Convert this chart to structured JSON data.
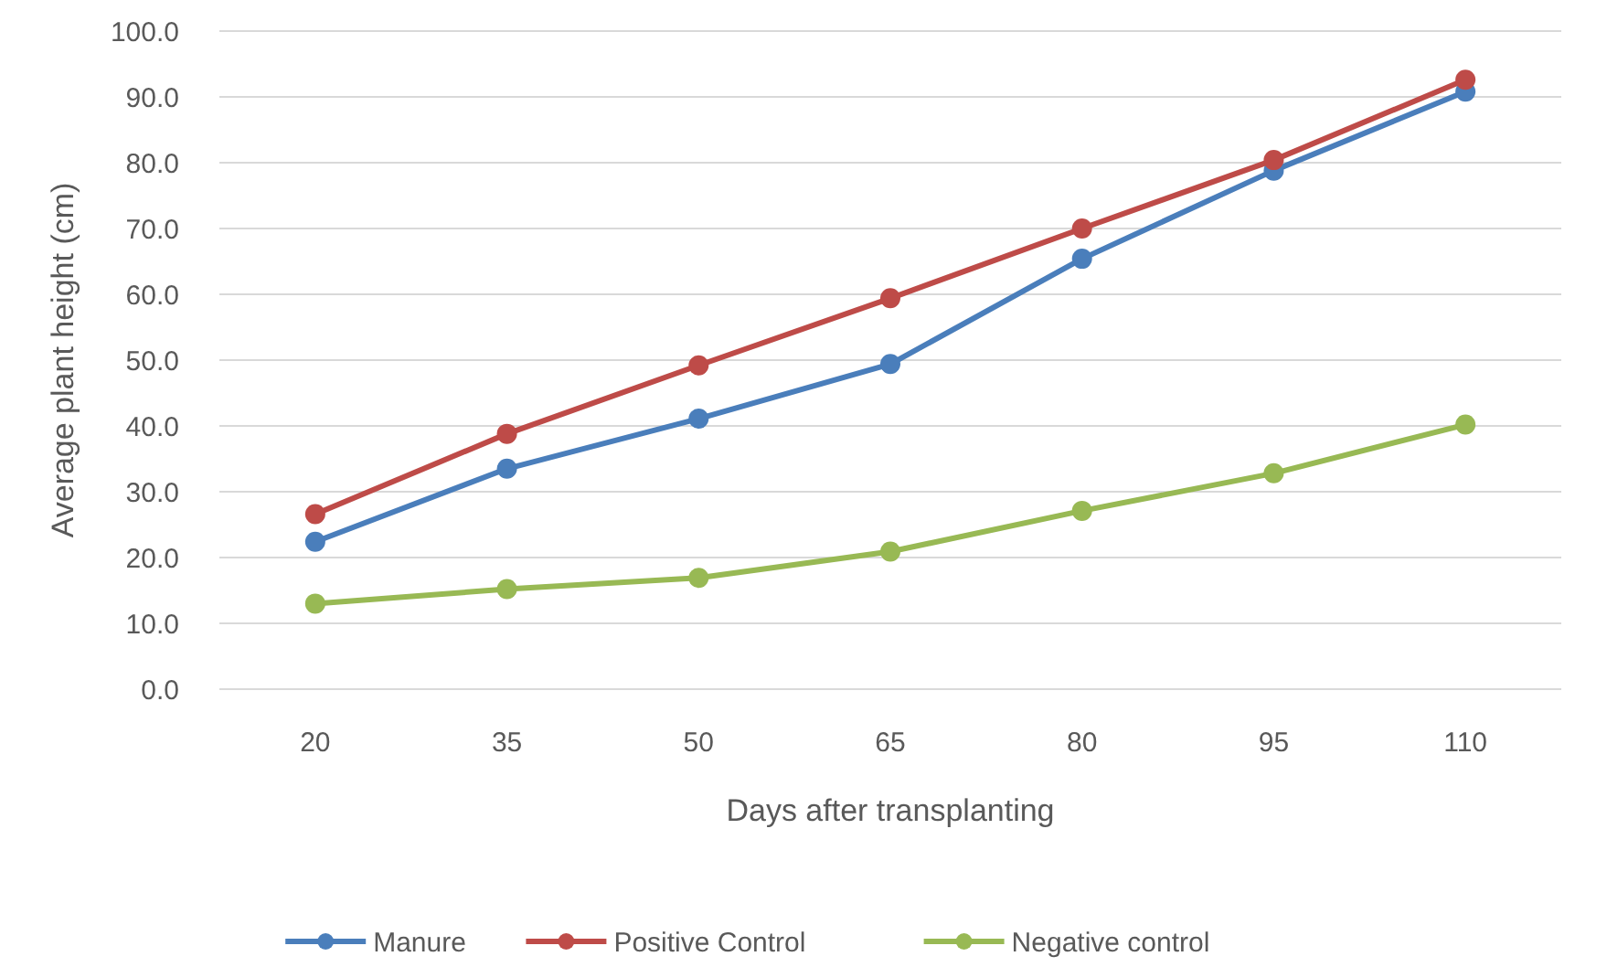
{
  "chart_data": {
    "type": "line",
    "xlabel": "Days after transplanting",
    "ylabel": "Average plant height (cm)",
    "categories": [
      "20",
      "35",
      "50",
      "65",
      "80",
      "95",
      "110"
    ],
    "series": [
      {
        "name": "Manure",
        "color": "#4a7ebb",
        "values": [
          22.4,
          33.5,
          41.1,
          49.4,
          65.4,
          78.8,
          90.8
        ]
      },
      {
        "name": "Positive Control",
        "color": "#be4b48",
        "values": [
          26.6,
          38.8,
          49.2,
          59.4,
          70.0,
          80.4,
          92.6
        ]
      },
      {
        "name": "Negative control",
        "color": "#98b954",
        "values": [
          13.0,
          15.2,
          16.9,
          20.9,
          27.1,
          32.8,
          40.2
        ]
      }
    ],
    "ylim": [
      0,
      100
    ],
    "yticks": [
      {
        "value": 0,
        "label": "0.0"
      },
      {
        "value": 10,
        "label": "10.0"
      },
      {
        "value": 20,
        "label": "20.0"
      },
      {
        "value": 30,
        "label": "30.0"
      },
      {
        "value": 40,
        "label": "40.0"
      },
      {
        "value": 50,
        "label": "50.0"
      },
      {
        "value": 60,
        "label": "60.0"
      },
      {
        "value": 70,
        "label": "70.0"
      },
      {
        "value": 80,
        "label": "80.0"
      },
      {
        "value": 90,
        "label": "90.0"
      },
      {
        "value": 100,
        "label": "100.0"
      }
    ],
    "grid": "y",
    "legend": "bottom",
    "marker": "circle",
    "line_style": "solid"
  }
}
